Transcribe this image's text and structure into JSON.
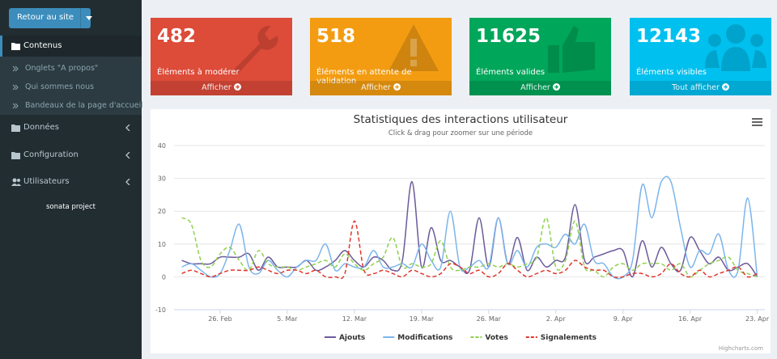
{
  "sidebar": {
    "button": "Retour au site",
    "menu": [
      {
        "label": "Contenus",
        "items": [
          "Onglets \"A propos\"",
          "Qui sommes nous",
          "Bandeaux de la page d'accueil"
        ]
      },
      {
        "label": "Données"
      },
      {
        "label": "Configuration"
      },
      {
        "label": "Utilisateurs"
      }
    ],
    "footer": "sonata project"
  },
  "boxes": [
    {
      "number": 482,
      "label": "Éléments à modérer",
      "link": "Afficher",
      "color": "#dd4b39"
    },
    {
      "number": 518,
      "label": "Éléments en attente de validation",
      "link": "Afficher",
      "color": "#f39c12"
    },
    {
      "number": 11625,
      "label": "Éléments valides",
      "link": "Afficher",
      "color": "#00a65a"
    },
    {
      "number": 12143,
      "label": "Éléments visibles",
      "link": "Tout afficher",
      "color": "#00c0ef"
    }
  ],
  "chart_data": {
    "type": "line",
    "title": "Statistiques des interactions utilisateur",
    "subtitle": "Click & drag pour zoomer sur une période",
    "categories": [
      null,
      null,
      null,
      null,
      "26. Feb",
      null,
      null,
      null,
      null,
      null,
      null,
      "5. Mar",
      null,
      null,
      null,
      null,
      null,
      null,
      "12. Mar",
      null,
      null,
      null,
      null,
      null,
      null,
      "19. Mar",
      null,
      null,
      null,
      null,
      null,
      null,
      "26. Mar",
      null,
      null,
      null,
      null,
      null,
      null,
      "2. Apr",
      null,
      null,
      null,
      null,
      null,
      null,
      "9. Apr",
      null,
      null,
      null,
      null,
      null,
      null,
      "16. Apr",
      null,
      null,
      null,
      null,
      null,
      null,
      "23. Apr"
    ],
    "series": [
      {
        "name": "Ajouts",
        "color": "#6c5b9b",
        "values": [
          5,
          4,
          4,
          4,
          6,
          6,
          6,
          7,
          2,
          6,
          3,
          3,
          3,
          5,
          2,
          3,
          5,
          8,
          5,
          3,
          6,
          5,
          2,
          5,
          29,
          3,
          15,
          5,
          5,
          3,
          2,
          18,
          3,
          18,
          4,
          12,
          2,
          6,
          3,
          5,
          6,
          22,
          5,
          6,
          7,
          8,
          8,
          0,
          11,
          3,
          9,
          4,
          2,
          12,
          8,
          4,
          6,
          2,
          3,
          4,
          0
        ]
      },
      {
        "name": "Modifications",
        "color": "#7cb5ec",
        "values": [
          3,
          4,
          2,
          0,
          1,
          8,
          16,
          3,
          1,
          5,
          2,
          0,
          3,
          5,
          5,
          10,
          2,
          4,
          3,
          3,
          8,
          3,
          3,
          4,
          3,
          10,
          5,
          3,
          20,
          3,
          3,
          5,
          3,
          18,
          4,
          8,
          3,
          9,
          10,
          9,
          13,
          10,
          16,
          5,
          4,
          0,
          0,
          5,
          28,
          18,
          29,
          29,
          15,
          3,
          8,
          7,
          13,
          2,
          2,
          24,
          0
        ]
      },
      {
        "name": "Votes",
        "color": "#8fd14f",
        "dashed": true,
        "values": [
          18,
          16,
          5,
          3,
          7,
          9,
          5,
          2,
          8,
          4,
          3,
          3,
          2,
          3,
          4,
          5,
          3,
          7,
          4,
          2,
          4,
          6,
          12,
          3,
          4,
          3,
          4,
          11,
          3,
          2,
          3,
          3,
          4,
          3,
          4,
          3,
          4,
          6,
          18,
          3,
          5,
          17,
          3,
          2,
          0,
          3,
          4,
          2,
          4,
          4,
          4,
          2,
          4,
          0,
          2,
          4,
          5,
          6,
          2,
          1,
          0
        ]
      },
      {
        "name": "Signalements",
        "color": "#e0352b",
        "dashed": true,
        "values": [
          1,
          2,
          1,
          0,
          1,
          2,
          2,
          2,
          3,
          2,
          1,
          2,
          2,
          1,
          2,
          0,
          0,
          1,
          17,
          2,
          1,
          2,
          1,
          0,
          2,
          1,
          0,
          1,
          4,
          3,
          1,
          2,
          0,
          1,
          4,
          2,
          0,
          1,
          2,
          1,
          2,
          5,
          3,
          2,
          2,
          0,
          0,
          1,
          1,
          0,
          1,
          4,
          1,
          0,
          2,
          0,
          1,
          2,
          3,
          0,
          1
        ]
      }
    ],
    "ylim": [
      -10,
      40
    ],
    "yticks": [
      -10,
      0,
      10,
      20,
      30,
      40
    ],
    "grid": true,
    "legend": "bottom",
    "credits": "Highcharts.com"
  }
}
